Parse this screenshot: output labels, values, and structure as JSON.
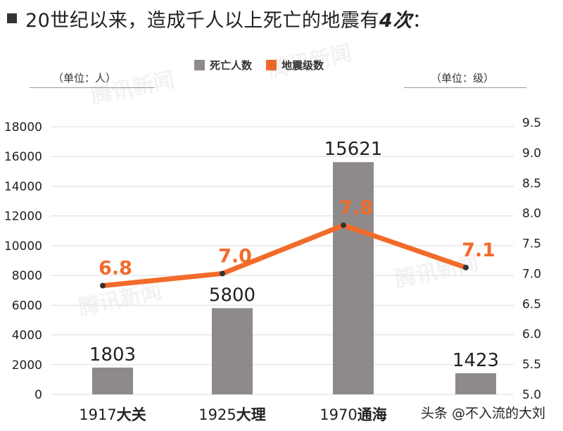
{
  "title": {
    "prefix": "20世纪以来，造成千人以上死亡的地震有",
    "emphasis": "4次",
    "suffix": "："
  },
  "units": {
    "left": "（单位：人）",
    "right": "（单位：级）"
  },
  "watermark_text": "腾讯新闻",
  "footer_text": "头条 @不入流的大刘",
  "colors": {
    "bar": "#8f8a8a",
    "line": "#f26b2a",
    "point": "#333333",
    "grid": "#dddddd",
    "axis": "#222222"
  },
  "chart_data": {
    "type": "bar",
    "categories": [
      {
        "year": "1917",
        "place": "大关"
      },
      {
        "year": "1925",
        "place": "大理"
      },
      {
        "year": "1970",
        "place": "通海"
      },
      {
        "year": "",
        "place": ""
      }
    ],
    "series": [
      {
        "name": "死亡人数",
        "type": "bar",
        "axis": "left",
        "values": [
          1803,
          5800,
          15621,
          1423
        ],
        "labels": [
          "1803",
          "5800",
          "15621",
          "1423"
        ]
      },
      {
        "name": "地震级数",
        "type": "line",
        "axis": "right",
        "values": [
          6.8,
          7.0,
          7.8,
          7.1
        ],
        "labels": [
          "6.8",
          "7.0",
          "7.8",
          "7.1"
        ]
      }
    ],
    "y_left": {
      "ylim": [
        0,
        18000
      ],
      "ticks": [
        0,
        2000,
        4000,
        6000,
        8000,
        10000,
        12000,
        14000,
        16000,
        18000
      ],
      "tick_labels": [
        "0",
        "2000",
        "4000",
        "6000",
        "8000",
        "10000",
        "12000",
        "14000",
        "16000",
        "18000"
      ]
    },
    "y_right": {
      "ylim": [
        5.0,
        9.5
      ],
      "ticks": [
        5.0,
        5.5,
        6.0,
        6.5,
        7.0,
        7.5,
        8.0,
        8.5,
        9.0,
        9.5
      ],
      "tick_labels": [
        "5.0",
        "5.5",
        "6.0",
        "6.5",
        "7.0",
        "7.5",
        "8.0",
        "8.5",
        "9.0",
        "9.5"
      ]
    },
    "grid": true,
    "legend_position": "top-center"
  }
}
